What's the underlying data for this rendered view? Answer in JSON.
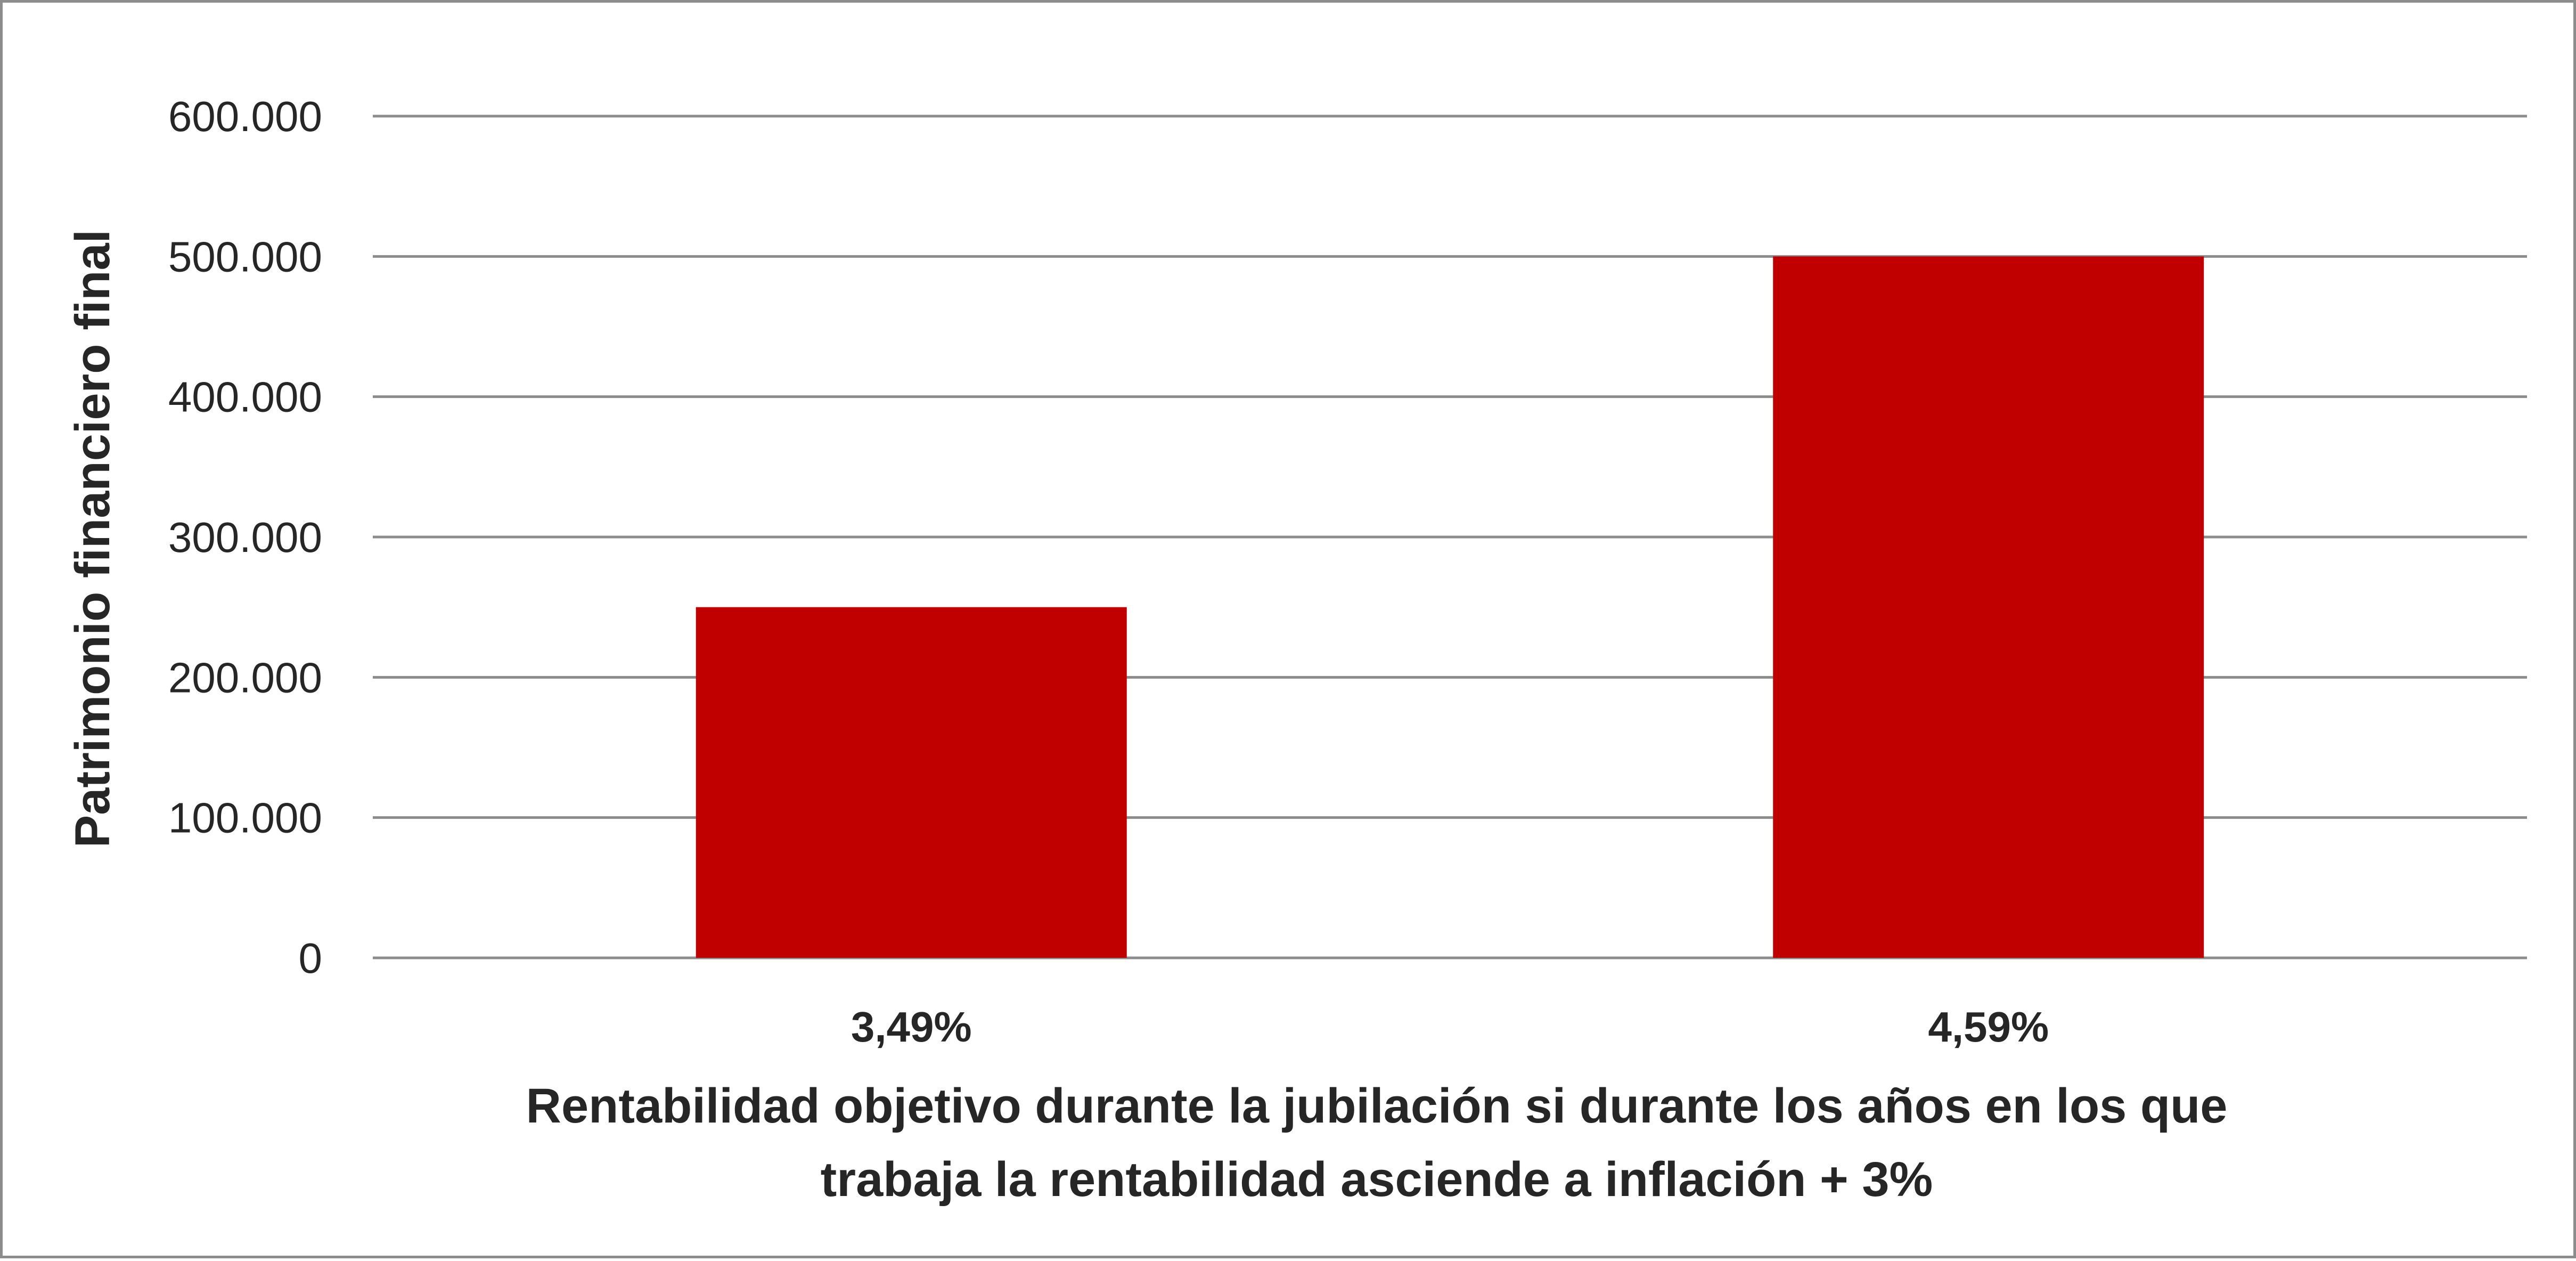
{
  "chart_data": {
    "type": "bar",
    "title": "",
    "categories": [
      "3,49%",
      "4,59%"
    ],
    "values": [
      250000,
      500000
    ],
    "xlabel_lines": [
      "Rentabilidad objetivo durante la jubilación si durante los años en los que",
      "trabaja la rentabilidad asciende a inflación + 3%"
    ],
    "ylabel": "Patrimonio financiero final",
    "ylim": [
      0,
      600000
    ],
    "yticks": [
      0,
      100000,
      200000,
      300000,
      400000,
      500000,
      600000
    ],
    "ytick_labels": [
      "0",
      "100.000",
      "200.000",
      "300.000",
      "400.000",
      "500.000",
      "600.000"
    ],
    "grid": true,
    "legend": "none",
    "bar_color": "#c00000",
    "grid_color": "#8c8c8c"
  }
}
